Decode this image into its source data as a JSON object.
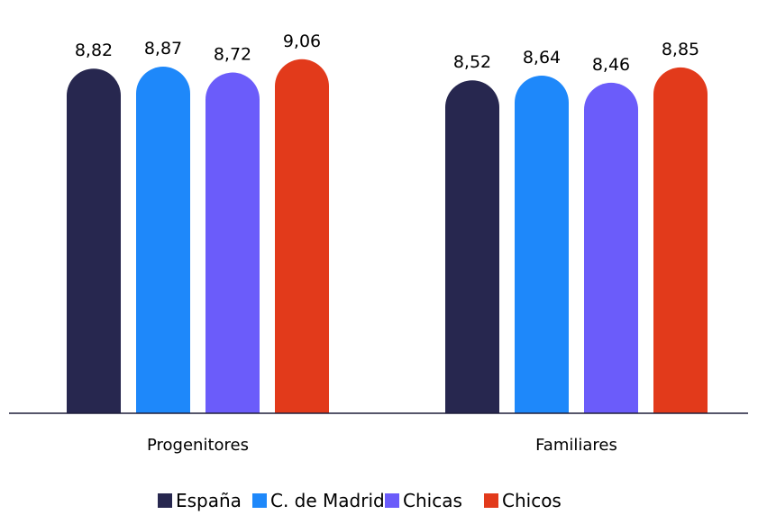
{
  "chart_data": {
    "type": "bar",
    "categories": [
      "Progenitores",
      "Familiares"
    ],
    "series": [
      {
        "name": "España",
        "values": [
          8.82,
          8.52
        ],
        "labels": [
          "8,82",
          "8,52"
        ],
        "color": "#27274F"
      },
      {
        "name": "C. de Madrid",
        "values": [
          8.87,
          8.64
        ],
        "labels": [
          "8,87",
          "8,64"
        ],
        "color": "#1E88FA"
      },
      {
        "name": "Chicas",
        "values": [
          8.72,
          8.46
        ],
        "labels": [
          "8,72",
          "8,46"
        ],
        "color": "#6B5CFA"
      },
      {
        "name": "Chicos",
        "values": [
          9.06,
          8.85
        ],
        "labels": [
          "9,06",
          "8,85"
        ],
        "color": "#E23A1B"
      }
    ],
    "title": "",
    "xlabel": "",
    "ylabel": "",
    "grid": false,
    "legend": "bottom",
    "axis_color": "#1f1f3a"
  }
}
